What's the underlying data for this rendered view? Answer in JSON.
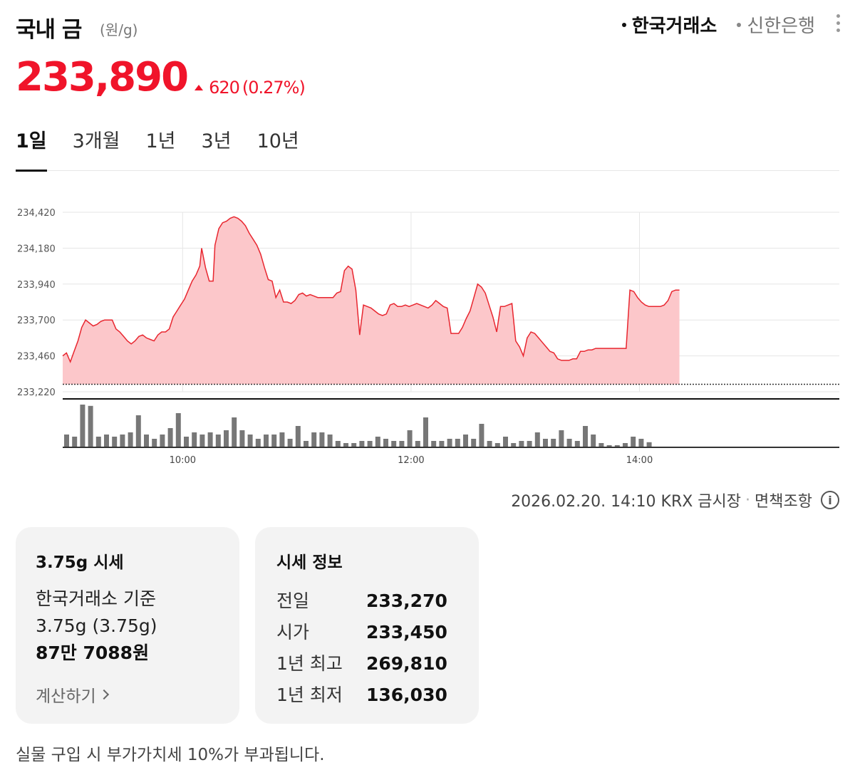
{
  "header": {
    "title": "국내 금",
    "unit": "(원/g)",
    "sources": [
      "한국거래소",
      "신한은행"
    ]
  },
  "price": {
    "value": "233,890",
    "change": "620",
    "change_pct": "(0.27%)"
  },
  "tabs": [
    "1일",
    "3개월",
    "1년",
    "3년",
    "10년"
  ],
  "chart_data": {
    "type": "area",
    "color": "#e8262f",
    "fill": "#fcc7ca",
    "yticks": [
      "234,420",
      "234,180",
      "233,940",
      "233,700",
      "233,460",
      "233,220"
    ],
    "ytick_values": [
      234420,
      234180,
      233940,
      233700,
      233460,
      233220
    ],
    "xticks": [
      "10:00",
      "12:00",
      "14:00"
    ],
    "xtick_minutes": [
      600,
      720,
      840
    ],
    "x_range_minutes": [
      537,
      945
    ],
    "ylim": [
      233220,
      234420
    ],
    "baseline": 233270,
    "series": [
      [
        537,
        233460
      ],
      [
        539,
        233480
      ],
      [
        541,
        233420
      ],
      [
        543,
        233490
      ],
      [
        545,
        233560
      ],
      [
        547,
        233650
      ],
      [
        549,
        233700
      ],
      [
        551,
        233680
      ],
      [
        553,
        233660
      ],
      [
        555,
        233670
      ],
      [
        557,
        233690
      ],
      [
        559,
        233700
      ],
      [
        561,
        233700
      ],
      [
        563,
        233700
      ],
      [
        565,
        233640
      ],
      [
        567,
        233620
      ],
      [
        569,
        233590
      ],
      [
        571,
        233560
      ],
      [
        573,
        233540
      ],
      [
        575,
        233560
      ],
      [
        577,
        233590
      ],
      [
        579,
        233600
      ],
      [
        581,
        233580
      ],
      [
        583,
        233570
      ],
      [
        585,
        233560
      ],
      [
        587,
        233600
      ],
      [
        589,
        233620
      ],
      [
        591,
        233620
      ],
      [
        593,
        233640
      ],
      [
        595,
        233720
      ],
      [
        597,
        233760
      ],
      [
        599,
        233800
      ],
      [
        601,
        233840
      ],
      [
        603,
        233900
      ],
      [
        605,
        233960
      ],
      [
        607,
        234000
      ],
      [
        609,
        234060
      ],
      [
        610,
        234180
      ],
      [
        612,
        234050
      ],
      [
        614,
        233960
      ],
      [
        616,
        233960
      ],
      [
        617,
        234200
      ],
      [
        619,
        234310
      ],
      [
        621,
        234350
      ],
      [
        623,
        234360
      ],
      [
        625,
        234380
      ],
      [
        627,
        234390
      ],
      [
        629,
        234380
      ],
      [
        631,
        234360
      ],
      [
        633,
        234330
      ],
      [
        635,
        234280
      ],
      [
        637,
        234240
      ],
      [
        639,
        234200
      ],
      [
        641,
        234140
      ],
      [
        643,
        234050
      ],
      [
        645,
        233970
      ],
      [
        647,
        233960
      ],
      [
        649,
        233850
      ],
      [
        651,
        233900
      ],
      [
        653,
        233820
      ],
      [
        655,
        233820
      ],
      [
        657,
        233810
      ],
      [
        659,
        233830
      ],
      [
        661,
        233870
      ],
      [
        663,
        233880
      ],
      [
        665,
        233860
      ],
      [
        667,
        233870
      ],
      [
        669,
        233860
      ],
      [
        671,
        233850
      ],
      [
        673,
        233850
      ],
      [
        675,
        233850
      ],
      [
        677,
        233850
      ],
      [
        679,
        233850
      ],
      [
        681,
        233880
      ],
      [
        683,
        233890
      ],
      [
        685,
        234030
      ],
      [
        687,
        234060
      ],
      [
        689,
        234040
      ],
      [
        691,
        233900
      ],
      [
        693,
        233600
      ],
      [
        695,
        233800
      ],
      [
        697,
        233790
      ],
      [
        699,
        233780
      ],
      [
        701,
        233760
      ],
      [
        703,
        233740
      ],
      [
        705,
        233730
      ],
      [
        707,
        233740
      ],
      [
        709,
        233800
      ],
      [
        711,
        233810
      ],
      [
        713,
        233790
      ],
      [
        715,
        233790
      ],
      [
        717,
        233800
      ],
      [
        719,
        233790
      ],
      [
        721,
        233800
      ],
      [
        723,
        233810
      ],
      [
        725,
        233800
      ],
      [
        727,
        233790
      ],
      [
        729,
        233780
      ],
      [
        731,
        233800
      ],
      [
        733,
        233830
      ],
      [
        735,
        233810
      ],
      [
        737,
        233790
      ],
      [
        739,
        233780
      ],
      [
        741,
        233610
      ],
      [
        743,
        233610
      ],
      [
        745,
        233610
      ],
      [
        747,
        233650
      ],
      [
        749,
        233710
      ],
      [
        751,
        233760
      ],
      [
        753,
        233850
      ],
      [
        755,
        233940
      ],
      [
        757,
        233920
      ],
      [
        759,
        233880
      ],
      [
        761,
        233800
      ],
      [
        763,
        233720
      ],
      [
        765,
        233620
      ],
      [
        767,
        233790
      ],
      [
        769,
        233790
      ],
      [
        771,
        233800
      ],
      [
        773,
        233810
      ],
      [
        775,
        233560
      ],
      [
        777,
        233520
      ],
      [
        779,
        233460
      ],
      [
        781,
        233580
      ],
      [
        783,
        233620
      ],
      [
        785,
        233610
      ],
      [
        787,
        233580
      ],
      [
        789,
        233550
      ],
      [
        791,
        233520
      ],
      [
        793,
        233490
      ],
      [
        795,
        233480
      ],
      [
        797,
        233440
      ],
      [
        799,
        233430
      ],
      [
        801,
        233430
      ],
      [
        803,
        233430
      ],
      [
        805,
        233440
      ],
      [
        807,
        233440
      ],
      [
        809,
        233490
      ],
      [
        811,
        233490
      ],
      [
        813,
        233500
      ],
      [
        815,
        233500
      ],
      [
        817,
        233510
      ],
      [
        819,
        233510
      ],
      [
        821,
        233510
      ],
      [
        823,
        233510
      ],
      [
        825,
        233510
      ],
      [
        827,
        233510
      ],
      [
        829,
        233510
      ],
      [
        831,
        233510
      ],
      [
        833,
        233510
      ],
      [
        835,
        233900
      ],
      [
        837,
        233890
      ],
      [
        839,
        233850
      ],
      [
        841,
        233820
      ],
      [
        843,
        233800
      ],
      [
        845,
        233790
      ],
      [
        847,
        233790
      ],
      [
        849,
        233790
      ],
      [
        851,
        233790
      ],
      [
        853,
        233800
      ],
      [
        855,
        233830
      ],
      [
        857,
        233890
      ],
      [
        859,
        233900
      ],
      [
        861,
        233900
      ]
    ],
    "volume_rel": [
      0.3,
      0.25,
      1.0,
      0.97,
      0.25,
      0.3,
      0.25,
      0.3,
      0.35,
      0.75,
      0.3,
      0.2,
      0.3,
      0.45,
      0.8,
      0.25,
      0.35,
      0.3,
      0.35,
      0.3,
      0.4,
      0.7,
      0.4,
      0.3,
      0.2,
      0.3,
      0.3,
      0.35,
      0.2,
      0.5,
      0.15,
      0.35,
      0.35,
      0.3,
      0.15,
      0.1,
      0.1,
      0.15,
      0.15,
      0.25,
      0.2,
      0.15,
      0.15,
      0.4,
      0.15,
      0.7,
      0.15,
      0.15,
      0.2,
      0.2,
      0.3,
      0.2,
      0.55,
      0.15,
      0.1,
      0.25,
      0.1,
      0.15,
      0.15,
      0.35,
      0.2,
      0.2,
      0.4,
      0.2,
      0.15,
      0.5,
      0.3,
      0.1,
      0.05,
      0.05,
      0.1,
      0.25,
      0.2,
      0.12
    ]
  },
  "meta": {
    "timestamp": "2026.02.20. 14:10 KRX 금시장",
    "disclaimer": "면책조항"
  },
  "card_375": {
    "title": "3.75g 시세",
    "basis": "한국거래소 기준",
    "weight": "3.75g (3.75g)",
    "value": "87만 7088원",
    "calc_label": "계산하기"
  },
  "card_info": {
    "title": "시세 정보",
    "rows": [
      {
        "label": "전일",
        "value": "233,270"
      },
      {
        "label": "시가",
        "value": "233,450"
      },
      {
        "label": "1년 최고",
        "value": "269,810"
      },
      {
        "label": "1년 최저",
        "value": "136,030"
      }
    ]
  },
  "footnote": "실물 구입 시 부가가치세 10%가 부과됩니다."
}
